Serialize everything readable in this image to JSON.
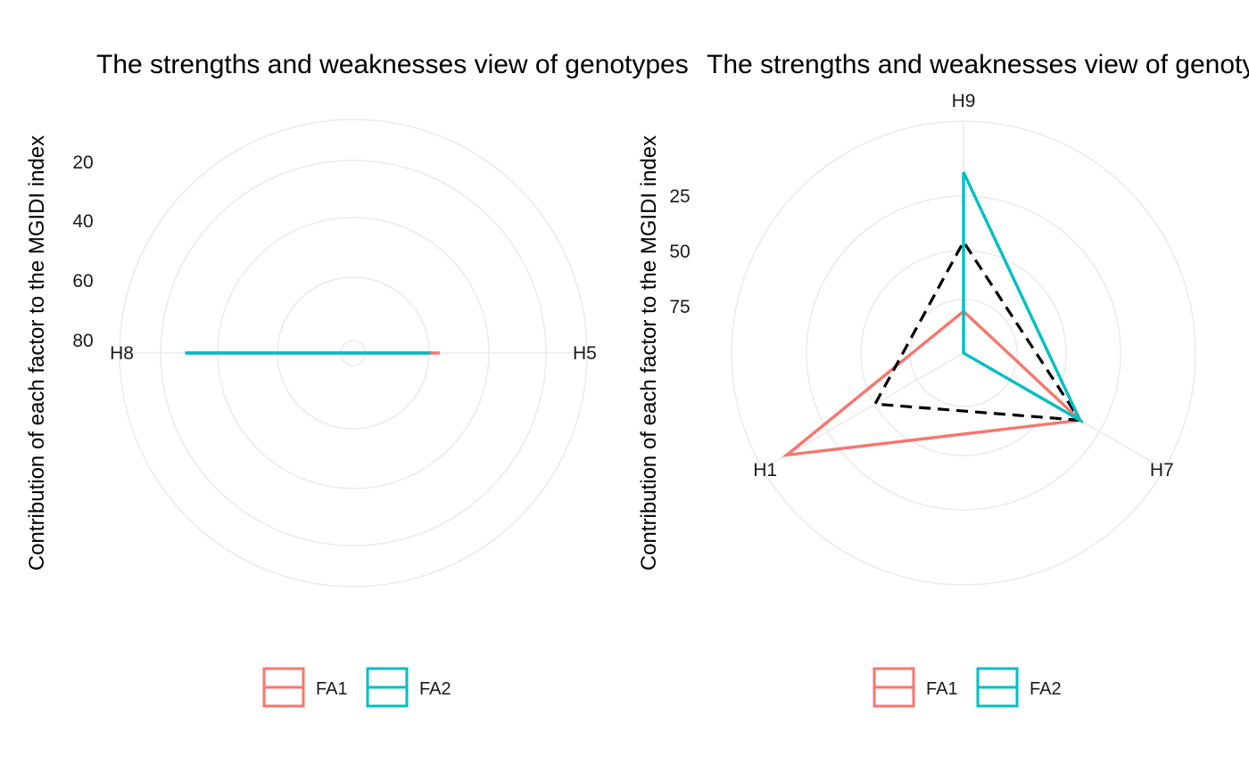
{
  "chart_data": [
    {
      "type": "radar",
      "title": "The strengths and weaknesses view of genotypes",
      "ylabel": "Contribution of each factor to the MGIDI index",
      "yticks": [
        20,
        40,
        60,
        80
      ],
      "categories": [
        "H5",
        "H8"
      ],
      "series": [
        {
          "name": "FA1",
          "color": "#F8766D",
          "values": [
            37,
            70
          ]
        },
        {
          "name": "FA2",
          "color": "#00BFC4",
          "values": [
            33,
            72
          ]
        },
        {
          "name": "",
          "color": "#000000",
          "dashed": true,
          "values": [
            34,
            71
          ]
        }
      ],
      "legend": {
        "position": "bottom",
        "entries": [
          "FA1",
          "FA2"
        ]
      }
    },
    {
      "type": "radar",
      "title": "The strengths and weaknesses view of genotypes",
      "ylabel": "Contribution of each factor to the MGIDI index",
      "yticks": [
        25,
        50,
        75
      ],
      "categories": [
        "H7",
        "H1",
        "H9"
      ],
      "series": [
        {
          "name": "FA1",
          "color": "#F8766D",
          "values": [
            58,
            88,
            18
          ]
        },
        {
          "name": "FA2",
          "color": "#00BFC4",
          "values": [
            58,
            0,
            78
          ]
        },
        {
          "name": "",
          "color": "#000000",
          "dashed": true,
          "values": [
            58,
            44,
            48
          ]
        }
      ],
      "legend": {
        "position": "bottom",
        "entries": [
          "FA1",
          "FA2"
        ]
      }
    }
  ]
}
